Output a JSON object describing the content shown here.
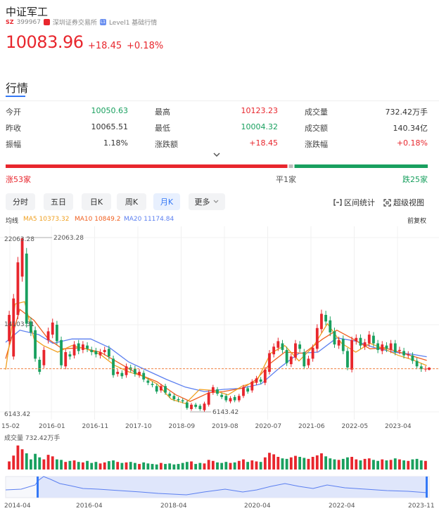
{
  "header": {
    "title": "中证军工",
    "market_badge": "SZ",
    "code": "399967",
    "exchange": "深圳证券交易所",
    "level_badge": "L1",
    "level": "Level1 基础行情",
    "price": "10083.96",
    "change": "+18.45",
    "change_pct": "+0.18%"
  },
  "section": {
    "title": "行情"
  },
  "quote": [
    {
      "label": "今开",
      "value": "10050.63",
      "color": "green"
    },
    {
      "label": "最高",
      "value": "10123.23",
      "color": "red"
    },
    {
      "label": "成交量",
      "value": "732.42万手",
      "color": "dark"
    },
    {
      "label": "昨收",
      "value": "10065.51",
      "color": "dark"
    },
    {
      "label": "最低",
      "value": "10004.32",
      "color": "green"
    },
    {
      "label": "成交额",
      "value": "140.34亿",
      "color": "dark"
    },
    {
      "label": "振幅",
      "value": "1.18%",
      "color": "dark"
    },
    {
      "label": "涨跌额",
      "value": "+18.45",
      "color": "red"
    },
    {
      "label": "涨跌幅",
      "value": "+0.18%",
      "color": "red"
    }
  ],
  "breadth": {
    "up": "涨53家",
    "flat": "平1家",
    "down": "跌25家",
    "up_n": 53,
    "flat_n": 1,
    "down_n": 25
  },
  "period_tabs": [
    "分时",
    "五日",
    "日K",
    "周K",
    "月K",
    "更多"
  ],
  "active_tab": "月K",
  "tools": {
    "range_stats": "区间统计",
    "fullscreen": "超级视图",
    "adjust": "前复权"
  },
  "ma_legend": {
    "label": "均线",
    "ma5": "MA5 10373.32",
    "ma10": "MA10 10849.2",
    "ma20": "MA20 11174.84"
  },
  "colors": {
    "up": "#e8262d",
    "down": "#19a05f",
    "ma5": "#f0a020",
    "ma10": "#f06020",
    "ma20": "#5b7ff0",
    "accent": "#3478f6"
  },
  "chart_data": {
    "type": "candlestick",
    "y_ticks": [
      "22063.28",
      "14103.31",
      "6143.42"
    ],
    "high_label": "22063.28",
    "low_label": "6143.42",
    "ylim": [
      6143.42,
      22063.28
    ],
    "x_ticks": [
      "15-02",
      "2016-01",
      "2016-11",
      "2017-10",
      "2018-09",
      "2019-08",
      "2020-07",
      "2021-06",
      "2022-05",
      "2023-04"
    ],
    "volume_label": "成交量 732.42万手",
    "last_close": 10083.96,
    "ma20_points": [
      [
        2015.0,
        12500
      ],
      [
        2015.3,
        13600
      ],
      [
        2015.7,
        13200
      ],
      [
        2016.0,
        12400
      ],
      [
        2016.4,
        12800
      ],
      [
        2016.8,
        12800
      ],
      [
        2017.2,
        12000
      ],
      [
        2017.6,
        10700
      ],
      [
        2018.0,
        9900
      ],
      [
        2018.4,
        9100
      ],
      [
        2018.8,
        8400
      ],
      [
        2019.2,
        8000
      ],
      [
        2019.6,
        8200
      ],
      [
        2020.0,
        8300
      ],
      [
        2020.4,
        8700
      ],
      [
        2020.8,
        10200
      ],
      [
        2021.2,
        11500
      ],
      [
        2021.6,
        11600
      ],
      [
        2022.0,
        12900
      ],
      [
        2022.4,
        12600
      ],
      [
        2022.8,
        12000
      ],
      [
        2023.2,
        11600
      ],
      [
        2023.6,
        11400
      ],
      [
        2023.9,
        11174.84
      ]
    ],
    "ma10_points": [
      [
        2015.0,
        11000
      ],
      [
        2015.3,
        15500
      ],
      [
        2015.6,
        14500
      ],
      [
        2015.9,
        12800
      ],
      [
        2016.2,
        11900
      ],
      [
        2016.6,
        12000
      ],
      [
        2017.0,
        11600
      ],
      [
        2017.4,
        10600
      ],
      [
        2017.8,
        9600
      ],
      [
        2018.2,
        8900
      ],
      [
        2018.6,
        7700
      ],
      [
        2018.9,
        7100
      ],
      [
        2019.3,
        7900
      ],
      [
        2019.6,
        8000
      ],
      [
        2020.0,
        8300
      ],
      [
        2020.3,
        9100
      ],
      [
        2020.6,
        10600
      ],
      [
        2020.9,
        11600
      ],
      [
        2021.3,
        11500
      ],
      [
        2021.7,
        12800
      ],
      [
        2022.0,
        13600
      ],
      [
        2022.3,
        12900
      ],
      [
        2022.7,
        11900
      ],
      [
        2023.0,
        12000
      ],
      [
        2023.4,
        11500
      ],
      [
        2023.9,
        10849.2
      ]
    ],
    "ma5_points": [
      [
        2015.0,
        10000
      ],
      [
        2015.2,
        16000
      ],
      [
        2015.4,
        16200
      ],
      [
        2015.6,
        12800
      ],
      [
        2015.8,
        12200
      ],
      [
        2016.1,
        11600
      ],
      [
        2016.4,
        12200
      ],
      [
        2016.7,
        11900
      ],
      [
        2017.0,
        11400
      ],
      [
        2017.3,
        10400
      ],
      [
        2017.6,
        9800
      ],
      [
        2017.9,
        9400
      ],
      [
        2018.2,
        8700
      ],
      [
        2018.5,
        7300
      ],
      [
        2018.8,
        6900
      ],
      [
        2019.1,
        8200
      ],
      [
        2019.4,
        8100
      ],
      [
        2019.7,
        7700
      ],
      [
        2020.0,
        8500
      ],
      [
        2020.3,
        8900
      ],
      [
        2020.6,
        11500
      ],
      [
        2020.9,
        12200
      ],
      [
        2021.2,
        10800
      ],
      [
        2021.5,
        12100
      ],
      [
        2021.8,
        14200
      ],
      [
        2022.1,
        12400
      ],
      [
        2022.4,
        11600
      ],
      [
        2022.7,
        12400
      ],
      [
        2023.0,
        11900
      ],
      [
        2023.3,
        11300
      ],
      [
        2023.6,
        10900
      ],
      [
        2023.9,
        10373.32
      ]
    ],
    "candles": [
      [
        12600,
        15000
      ],
      [
        11200,
        16500
      ],
      [
        15000,
        19800
      ],
      [
        18500,
        22000
      ],
      [
        20600,
        14200
      ],
      [
        14400,
        13400
      ],
      [
        13600,
        11000
      ],
      [
        10900,
        9800
      ],
      [
        10400,
        11800
      ],
      [
        12700,
        13500
      ],
      [
        13200,
        14300
      ],
      [
        14100,
        12600
      ],
      [
        12700,
        10400
      ],
      [
        10300,
        11600
      ],
      [
        11400,
        11200
      ],
      [
        11300,
        12300
      ],
      [
        12400,
        11700
      ],
      [
        11800,
        12300
      ],
      [
        12200,
        11900
      ],
      [
        11800,
        11600
      ],
      [
        11700,
        11400
      ],
      [
        11300,
        11600
      ],
      [
        11600,
        11800
      ],
      [
        11900,
        11200
      ],
      [
        11000,
        9500
      ],
      [
        9600,
        9800
      ],
      [
        9700,
        9400
      ],
      [
        9500,
        10300
      ],
      [
        10200,
        10000
      ],
      [
        10100,
        9600
      ],
      [
        9500,
        9800
      ],
      [
        9700,
        9100
      ],
      [
        9000,
        8800
      ],
      [
        8700,
        8600
      ],
      [
        8500,
        8000
      ],
      [
        8100,
        8500
      ],
      [
        8500,
        7900
      ],
      [
        7800,
        7600
      ],
      [
        7600,
        7300
      ],
      [
        7300,
        7200
      ],
      [
        7200,
        7100
      ],
      [
        7000,
        6500
      ],
      [
        6400,
        6800
      ],
      [
        6800,
        6600
      ],
      [
        6700,
        6400
      ],
      [
        6300,
        6900
      ],
      [
        6800,
        7900
      ],
      [
        7900,
        8400
      ],
      [
        8200,
        7800
      ],
      [
        7700,
        7500
      ],
      [
        7600,
        7200
      ],
      [
        7100,
        7400
      ],
      [
        7500,
        7200
      ],
      [
        7200,
        7600
      ],
      [
        7600,
        8400
      ],
      [
        8300,
        8000
      ],
      [
        8100,
        8900
      ],
      [
        8800,
        9200
      ],
      [
        9100,
        8900
      ],
      [
        8800,
        10000
      ],
      [
        9800,
        11500
      ],
      [
        11400,
        12100
      ],
      [
        12000,
        12600
      ],
      [
        12400,
        11800
      ],
      [
        11800,
        10600
      ],
      [
        10500,
        11200
      ],
      [
        11100,
        12400
      ],
      [
        12300,
        11900
      ],
      [
        11600,
        10300
      ],
      [
        10400,
        11000
      ],
      [
        11000,
        12000
      ],
      [
        11900,
        13800
      ],
      [
        13700,
        15100
      ],
      [
        15000,
        14400
      ],
      [
        14500,
        13400
      ],
      [
        13500,
        12300
      ],
      [
        12200,
        12700
      ],
      [
        12800,
        11700
      ],
      [
        11700,
        10200
      ],
      [
        10000,
        12700
      ],
      [
        12600,
        12900
      ],
      [
        12900,
        12200
      ],
      [
        12100,
        12500
      ],
      [
        12400,
        13200
      ],
      [
        13100,
        12400
      ],
      [
        12400,
        11800
      ],
      [
        11700,
        12300
      ],
      [
        12200,
        11900
      ],
      [
        11800,
        12400
      ],
      [
        12400,
        11600
      ],
      [
        11700,
        11800
      ],
      [
        11700,
        11300
      ],
      [
        11300,
        11400
      ],
      [
        11300,
        10800
      ],
      [
        10800,
        10300
      ],
      [
        10300,
        10050
      ],
      [
        10065,
        10083.96
      ]
    ],
    "volumes": [
      0.32,
      0.55,
      0.95,
      0.8,
      0.64,
      0.4,
      0.62,
      0.48,
      0.4,
      0.58,
      0.52,
      0.4,
      0.38,
      0.3,
      0.34,
      0.36,
      0.3,
      0.28,
      0.34,
      0.26,
      0.3,
      0.24,
      0.28,
      0.33,
      0.36,
      0.3,
      0.26,
      0.28,
      0.3,
      0.26,
      0.22,
      0.28,
      0.24,
      0.22,
      0.2,
      0.26,
      0.22,
      0.24,
      0.2,
      0.22,
      0.26,
      0.3,
      0.32,
      0.22,
      0.26,
      0.24,
      0.38,
      0.34,
      0.28,
      0.26,
      0.3,
      0.26,
      0.28,
      0.34,
      0.4,
      0.3,
      0.36,
      0.32,
      0.3,
      0.48,
      0.66,
      0.6,
      0.5,
      0.44,
      0.42,
      0.48,
      0.54,
      0.5,
      0.46,
      0.42,
      0.5,
      0.56,
      0.64,
      0.52,
      0.44,
      0.4,
      0.38,
      0.42,
      0.48,
      0.5,
      0.4,
      0.36,
      0.42,
      0.44,
      0.38,
      0.34,
      0.4,
      0.36,
      0.38,
      0.44,
      0.4,
      0.36,
      0.34,
      0.4,
      0.42,
      0.36,
      0.34
    ],
    "navigator_labels": [
      "2014-04",
      "2016-04",
      "2018-04",
      "2020-04",
      "2022-04",
      "2023-11"
    ]
  }
}
